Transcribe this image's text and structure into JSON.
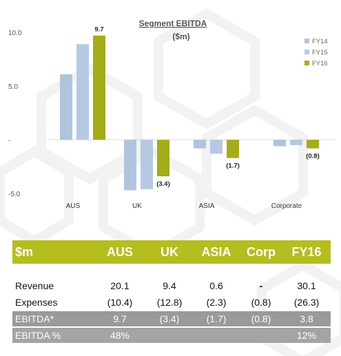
{
  "colors": {
    "FY14": "#b0c4de",
    "FY15": "#b7c9e2",
    "FY16": "#a4ac19",
    "header_bg": "#b5bd1f",
    "summary_bg": "#9a9a9a"
  },
  "chart_data": {
    "type": "bar",
    "title": "Segment EBITDA",
    "subtitle": "($m)",
    "categories": [
      "AUS",
      "UK",
      "ASIA",
      "Corporate"
    ],
    "series": [
      {
        "name": "FY14",
        "values": [
          6.1,
          -4.7,
          -0.8,
          -0.6
        ]
      },
      {
        "name": "FY15",
        "values": [
          8.9,
          -4.6,
          -1.3,
          -0.5
        ]
      },
      {
        "name": "FY16",
        "values": [
          9.7,
          -3.4,
          -1.7,
          -0.8
        ]
      }
    ],
    "data_labels": [
      "9.7",
      "(3.4)",
      "(1.7)",
      "(0.8)"
    ],
    "y_ticks": [
      {
        "value": 10,
        "label": "10.0"
      },
      {
        "value": 5,
        "label": "5.0"
      },
      {
        "value": 0,
        "label": "-"
      },
      {
        "value": -5,
        "label": "-5.0"
      }
    ],
    "ylim": [
      -5,
      10
    ],
    "grid": false,
    "legend_position": "top-right"
  },
  "table": {
    "headers": [
      "$m",
      "AUS",
      "UK",
      "ASIA",
      "Corp",
      "FY16"
    ],
    "rows": [
      {
        "label": "Revenue",
        "values": [
          "20.1",
          "9.4",
          "0.6",
          "-",
          "30.1"
        ]
      },
      {
        "label": "Expenses",
        "values": [
          "(10.4)",
          "(12.8)",
          "(2.3)",
          "(0.8)",
          "(26.3)"
        ]
      }
    ],
    "summary_rows": [
      {
        "label": "EBITDA*",
        "values": [
          "9.7",
          "(3.4)",
          "(1.7)",
          "(0.8)",
          "3.8"
        ]
      },
      {
        "label": "EBITDA %",
        "values": [
          "48%",
          "",
          "",
          "",
          "12%"
        ]
      }
    ]
  }
}
